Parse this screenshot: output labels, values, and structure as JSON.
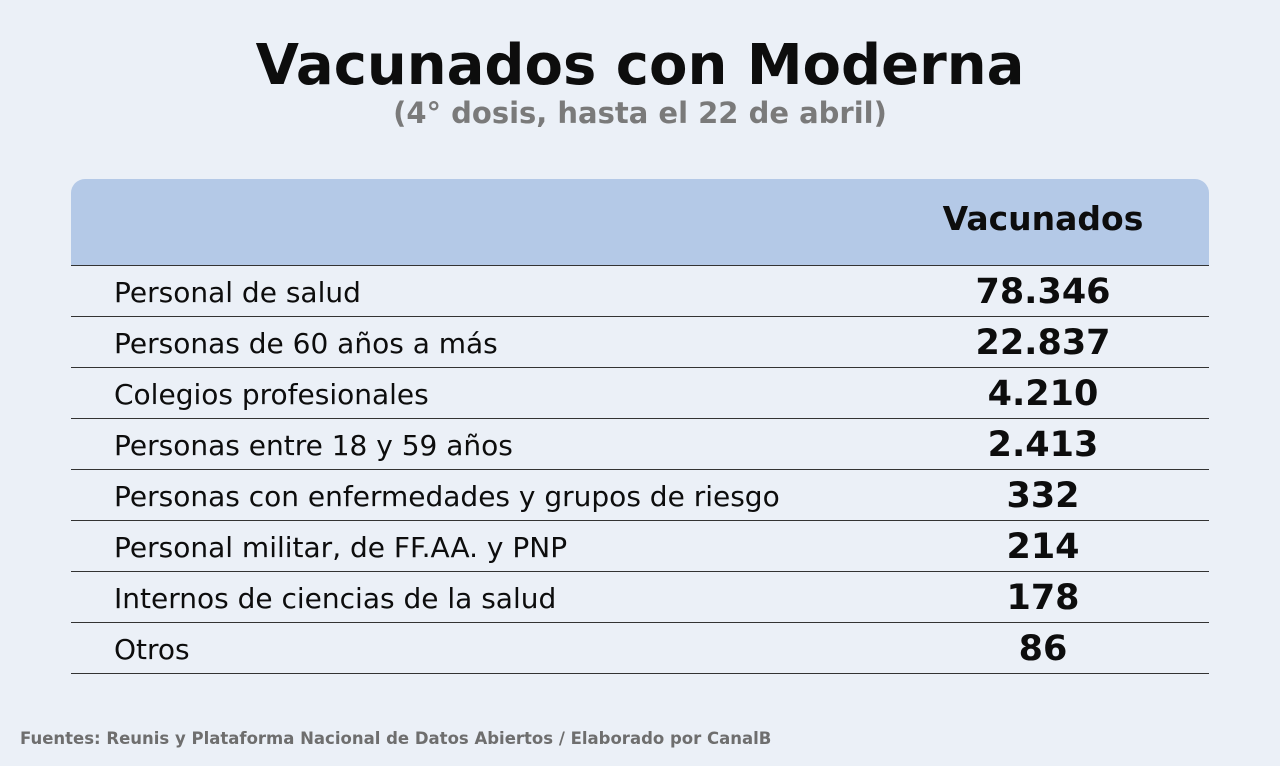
{
  "title": "Vacunados con Moderna",
  "subtitle": "(4° dosis, hasta el 22 de abril)",
  "source": "Fuentes: Reunis y Plataforma Nacional de Datos Abiertos / Elaborado por CanalB",
  "colors": {
    "background": "#ebf0f7",
    "header": "#b4c9e7",
    "subtitle": "#7a7a7a"
  },
  "chart_data": {
    "type": "table",
    "title": "Vacunados con Moderna",
    "subtitle": "(4° dosis, hasta el 22 de abril)",
    "columns": [
      "",
      "Vacunados"
    ],
    "rows": [
      {
        "category": "Personal de salud",
        "value": "78.346"
      },
      {
        "category": "Personas de 60 años a más",
        "value": "22.837"
      },
      {
        "category": "Colegios profesionales",
        "value": "4.210"
      },
      {
        "category": "Personas entre 18 y 59 años",
        "value": "2.413"
      },
      {
        "category": "Personas con enfermedades y grupos de riesgo",
        "value": "332"
      },
      {
        "category": "Personal militar, de FF.AA. y PNP",
        "value": "214"
      },
      {
        "category": "Internos de ciencias de la salud",
        "value": "178"
      },
      {
        "category": "Otros",
        "value": "86"
      }
    ]
  }
}
